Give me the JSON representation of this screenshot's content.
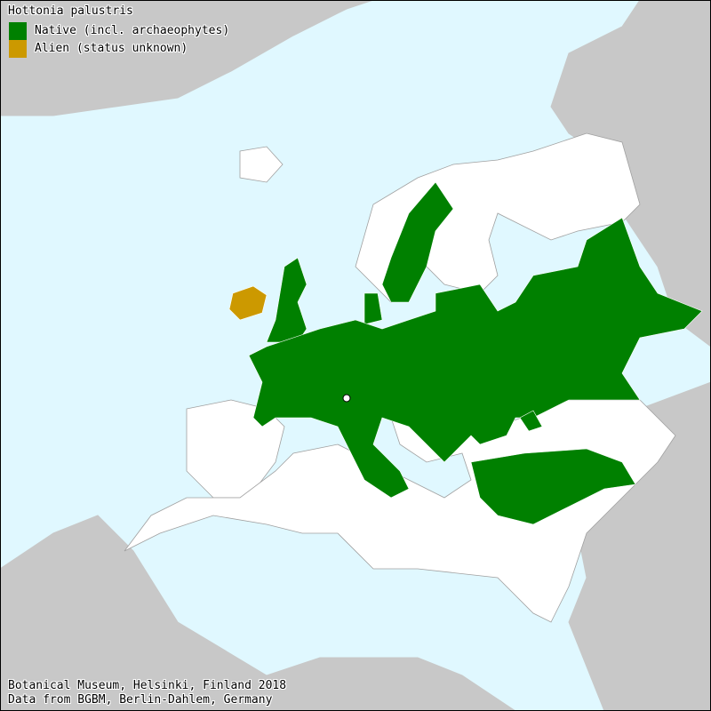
{
  "map": {
    "title": "Hottonia palustris",
    "legend": [
      {
        "label": "Native (incl. archaeophytes)",
        "color": "#008000"
      },
      {
        "label": "Alien (status unknown)",
        "color": "#cc9900"
      }
    ],
    "credits": [
      "Botanical Museum, Helsinki, Finland 2018",
      "Data from BGBM, Berlin-Dahlem, Germany"
    ],
    "colors": {
      "sea": "#e0f8ff",
      "outside_area": "#c8c8c8",
      "no_record": "#ffffff",
      "border": "#a0a0a0"
    }
  }
}
